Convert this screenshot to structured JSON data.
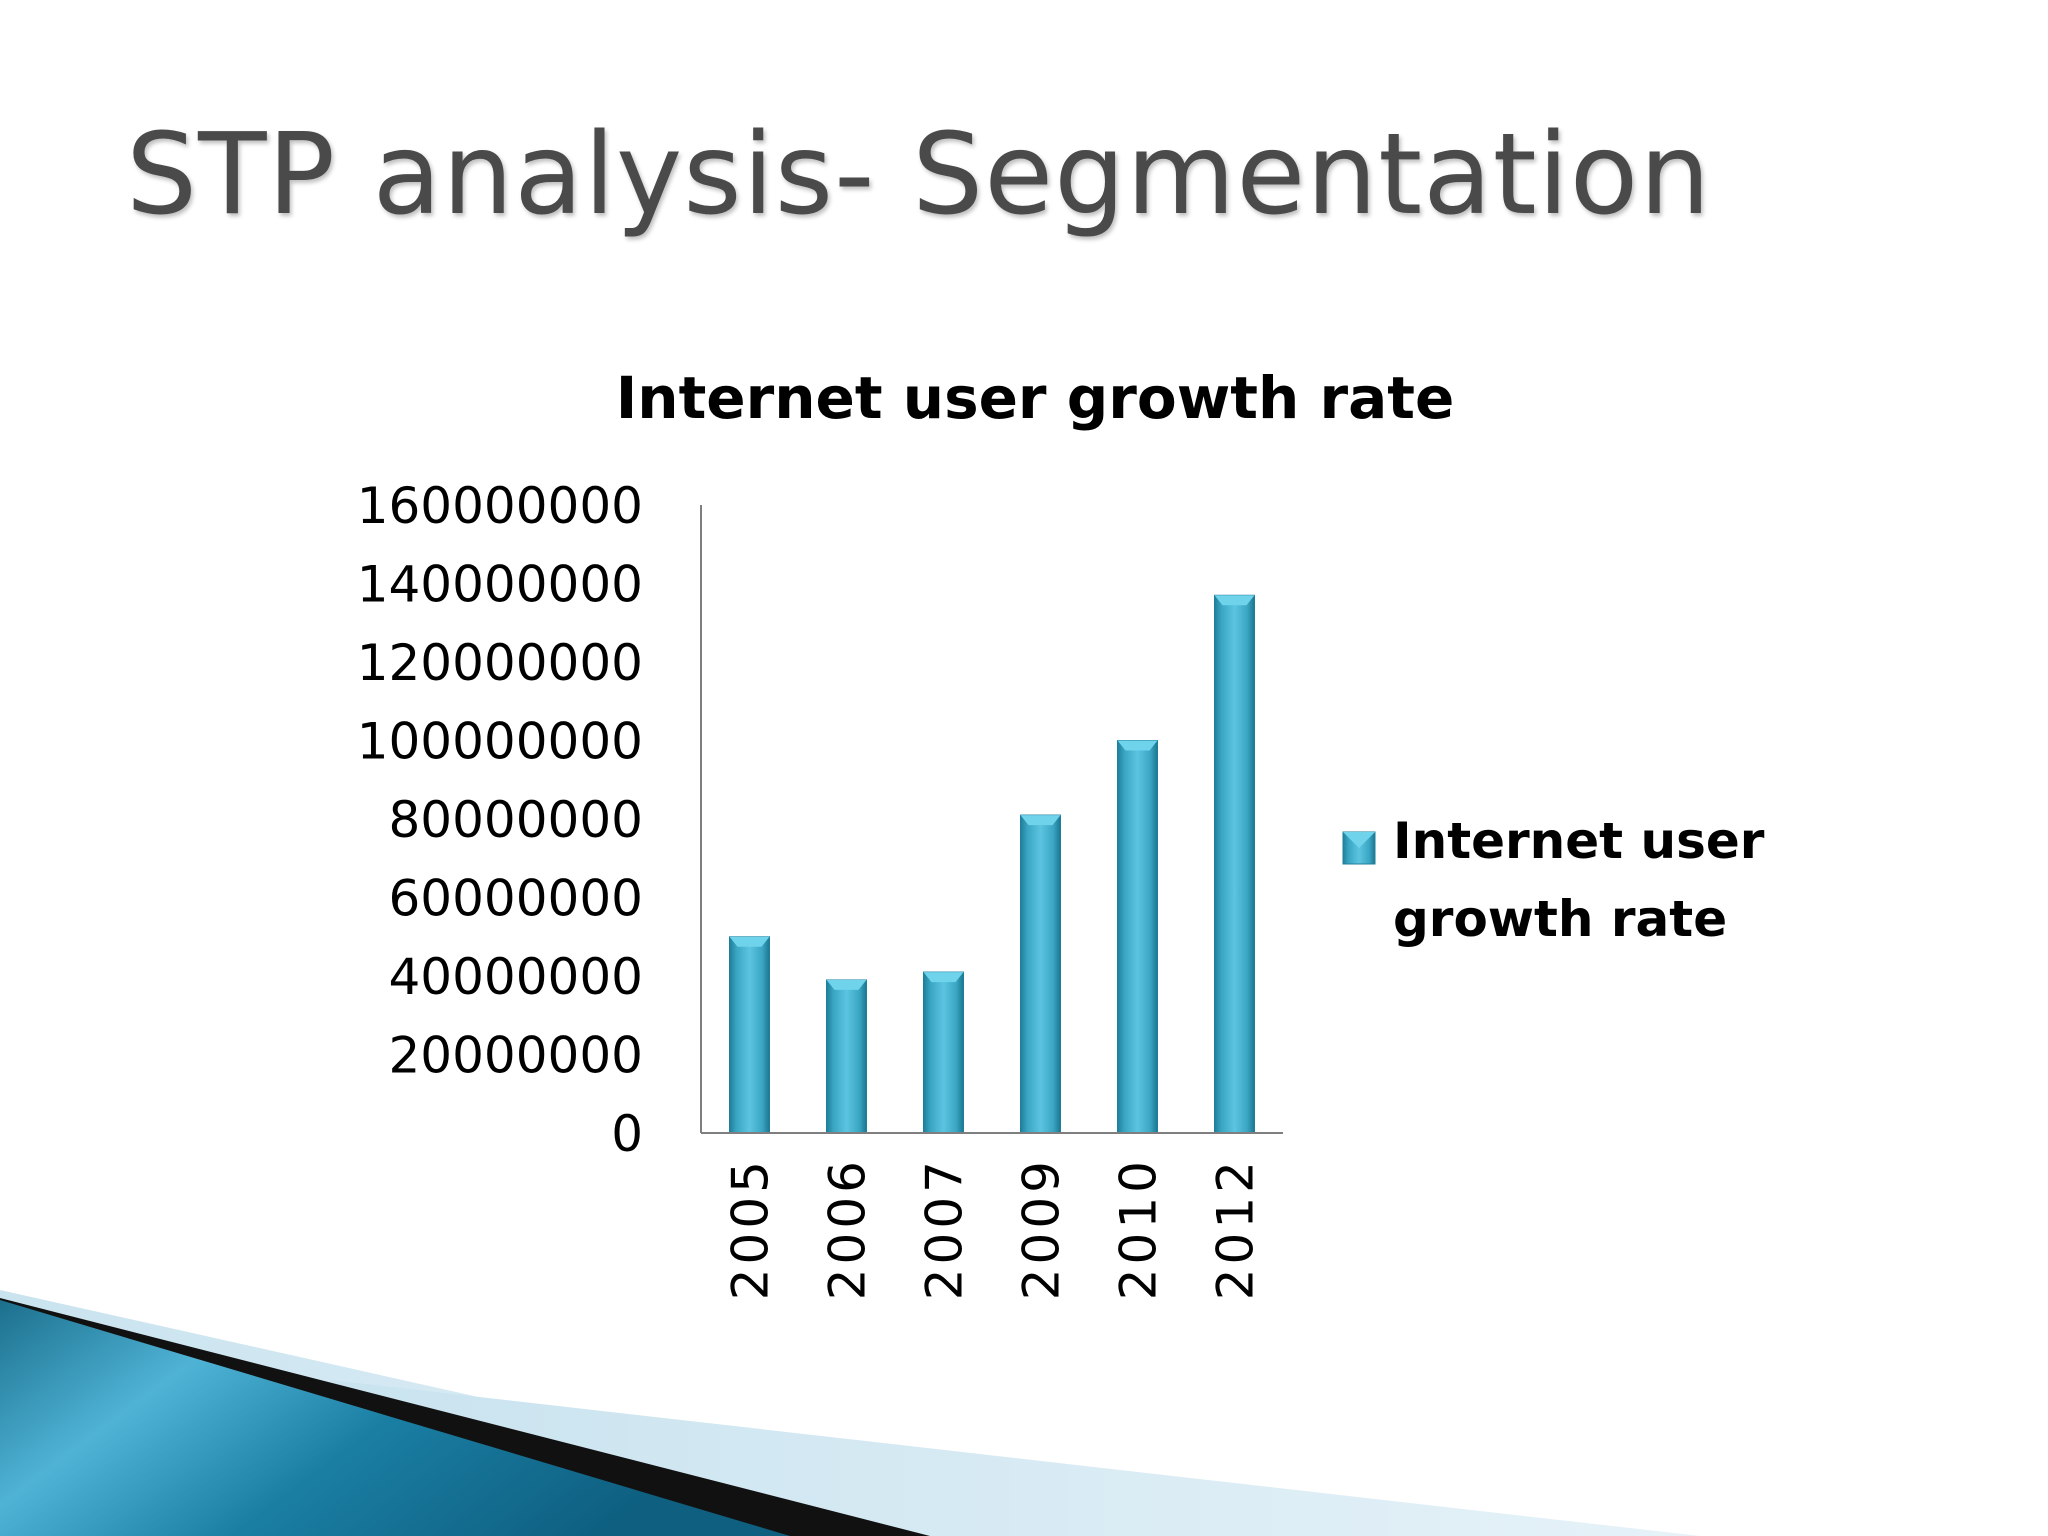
{
  "slide": {
    "title": "STP analysis- Segmentation"
  },
  "colors": {
    "bar": "#3aa6c4",
    "bar_light": "#6fd3ec",
    "bar_dark": "#1f7f9a",
    "axis": "#7f7f7f",
    "text": "#000000",
    "title": "#4a4a4a"
  },
  "chart_data": {
    "type": "bar",
    "title": "Internet user growth rate",
    "categories": [
      "2005",
      "2006",
      "2007",
      "2009",
      "2010",
      "2012"
    ],
    "series": [
      {
        "name": "Internet user growth rate",
        "values": [
          50000000,
          39000000,
          41000000,
          81000000,
          100000000,
          137000000
        ]
      }
    ],
    "yticks": [
      "0",
      "20000000",
      "40000000",
      "60000000",
      "80000000",
      "100000000",
      "120000000",
      "140000000",
      "160000000"
    ],
    "ylim": [
      0,
      160000000
    ],
    "legend_lines": [
      "Internet user",
      "growth rate"
    ],
    "legend_position": "right",
    "grid": false,
    "xlabel": "",
    "ylabel": ""
  }
}
